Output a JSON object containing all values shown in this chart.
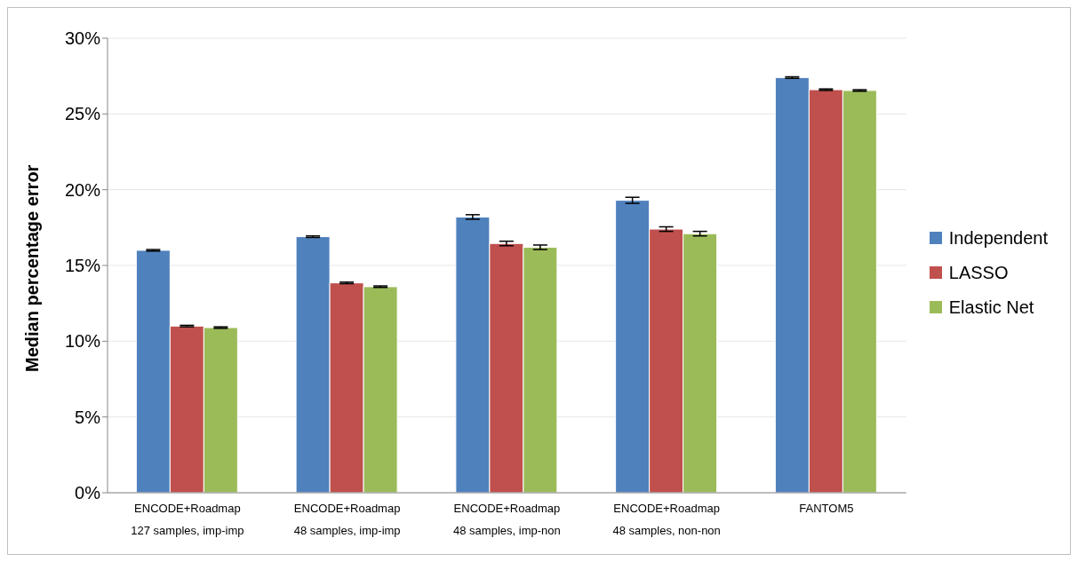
{
  "chart_data": {
    "type": "bar",
    "ylabel": "Median percentage error",
    "categories": [
      "ENCODE+Roadmap\n127 samples, imp-imp",
      "ENCODE+Roadmap\n48 samples, imp-imp",
      "ENCODE+Roadmap\n48 samples, imp-non",
      "ENCODE+Roadmap\n48 samples, non-non",
      "FANTOM5"
    ],
    "series": [
      {
        "name": "Independent",
        "color": "#4f81bd",
        "values": [
          16.0,
          16.9,
          18.2,
          19.3,
          27.4
        ],
        "errors": [
          0.05,
          0.05,
          0.15,
          0.2,
          0.05
        ]
      },
      {
        "name": "LASSO",
        "color": "#c0504d",
        "values": [
          11.0,
          13.85,
          16.45,
          17.4,
          26.6
        ],
        "errors": [
          0.05,
          0.05,
          0.15,
          0.15,
          0.05
        ]
      },
      {
        "name": "Elastic Net",
        "color": "#9bbb59",
        "values": [
          10.9,
          13.6,
          16.2,
          17.1,
          26.55
        ],
        "errors": [
          0.05,
          0.05,
          0.15,
          0.15,
          0.05
        ]
      }
    ],
    "ylim": [
      0,
      30
    ],
    "yticks": [
      {
        "value": 0,
        "label": "0%"
      },
      {
        "value": 5,
        "label": "5%"
      },
      {
        "value": 10,
        "label": "10%"
      },
      {
        "value": 15,
        "label": "15%"
      },
      {
        "value": 20,
        "label": "20%"
      },
      {
        "value": 25,
        "label": "25%"
      },
      {
        "value": 30,
        "label": "30%"
      }
    ],
    "grid": "y",
    "legend": "right"
  }
}
